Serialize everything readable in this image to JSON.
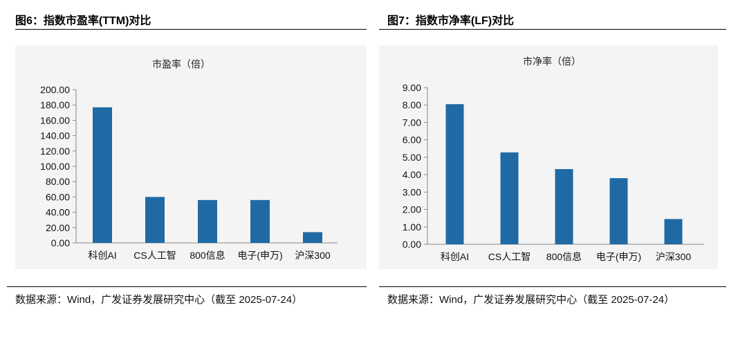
{
  "figures": [
    {
      "title": "图6：指数市盈率(TTM)对比",
      "source": "数据来源：Wind，广发证券发展研究中心（截至 2025-07-24）"
    },
    {
      "title": "图7：指数市净率(LF)对比",
      "source": "数据来源：Wind，广发证券发展研究中心（截至 2025-07-24）"
    }
  ],
  "chart_data": [
    {
      "type": "bar",
      "title": "市盈率（倍）",
      "categories": [
        "科创AI",
        "CS人工智",
        "800信息",
        "电子(申万)",
        "沪深300"
      ],
      "values": [
        177,
        60,
        56,
        56,
        14
      ],
      "ylim": [
        0,
        200
      ],
      "yticks": [
        "0.00",
        "20.00",
        "40.00",
        "60.00",
        "80.00",
        "100.00",
        "120.00",
        "140.00",
        "160.00",
        "180.00",
        "200.00"
      ],
      "grid": false,
      "legend": "none",
      "bar_color": "#1f6aa5"
    },
    {
      "type": "bar",
      "title": "市净率（倍）",
      "categories": [
        "科创AI",
        "CS人工智",
        "800信息",
        "电子(申万)",
        "沪深300"
      ],
      "values": [
        8.05,
        5.28,
        4.32,
        3.8,
        1.45
      ],
      "ylim": [
        0,
        9
      ],
      "yticks": [
        "0.00",
        "1.00",
        "2.00",
        "3.00",
        "4.00",
        "5.00",
        "6.00",
        "7.00",
        "8.00",
        "9.00"
      ],
      "grid": false,
      "legend": "none",
      "bar_color": "#1f6aa5"
    }
  ]
}
